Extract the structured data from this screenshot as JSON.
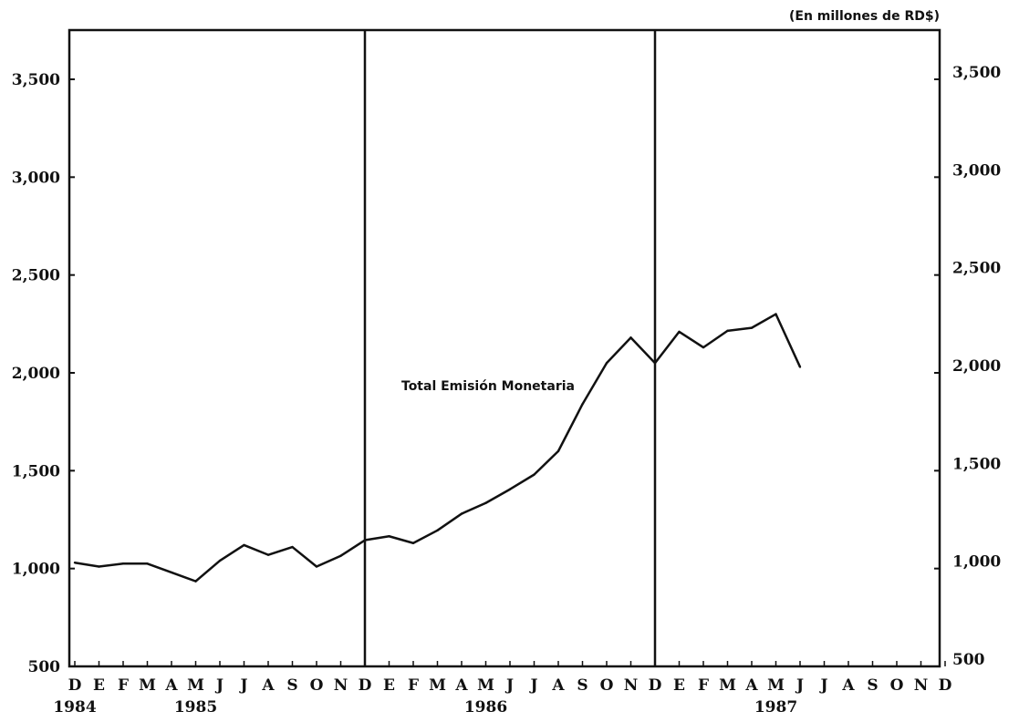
{
  "chart_data": {
    "type": "line",
    "unit_label": "(En millones de RD$)",
    "title": "",
    "xlabel": "",
    "ylabel": "",
    "ylim": [
      500,
      3750
    ],
    "y_ticks": [
      "500",
      "1,000",
      "1,500",
      "2,000",
      "2,500",
      "3,000",
      "3,500"
    ],
    "y_ticks_right": [
      "500",
      "1,000",
      "1,500",
      "2,000",
      "2,500",
      "3,000",
      "3,500"
    ],
    "month_labels": [
      "D",
      "E",
      "F",
      "M",
      "A",
      "M",
      "J",
      "J",
      "A",
      "S",
      "O",
      "N",
      "D",
      "E",
      "F",
      "M",
      "A",
      "M",
      "J",
      "J",
      "A",
      "S",
      "O",
      "N",
      "D",
      "E",
      "F",
      "M",
      "A",
      "M",
      "J",
      "J",
      "A",
      "S",
      "O",
      "N",
      "D"
    ],
    "year_labels": [
      "1984",
      "1985",
      "1986",
      "1987"
    ],
    "year_label_month_index": [
      0,
      5,
      17,
      29
    ],
    "year_dividers_month_index": [
      12,
      24
    ],
    "grid": false,
    "legend": "none",
    "series": [
      {
        "name": "Total Emisión Monetaria",
        "x": [
          "1984-12",
          "1985-01",
          "1985-02",
          "1985-03",
          "1985-04",
          "1985-05",
          "1985-06",
          "1985-07",
          "1985-08",
          "1985-09",
          "1985-10",
          "1985-11",
          "1985-12",
          "1986-01",
          "1986-02",
          "1986-03",
          "1986-04",
          "1986-05",
          "1986-06",
          "1986-07",
          "1986-08",
          "1986-09",
          "1986-10",
          "1986-11",
          "1986-12",
          "1987-01",
          "1987-02",
          "1987-03",
          "1987-04",
          "1987-05",
          "1987-06"
        ],
        "values": [
          1030,
          1010,
          1025,
          1025,
          980,
          935,
          1040,
          1120,
          1070,
          1110,
          1010,
          1065,
          1145,
          1165,
          1130,
          1195,
          1280,
          1335,
          1405,
          1480,
          1600,
          1840,
          2050,
          2180,
          2050,
          2210,
          2130,
          2215,
          2230,
          2300,
          2030
        ]
      }
    ],
    "annotation": "Total Emisión Monetaria",
    "colors": {
      "line": "#111111",
      "axis": "#111111"
    }
  }
}
